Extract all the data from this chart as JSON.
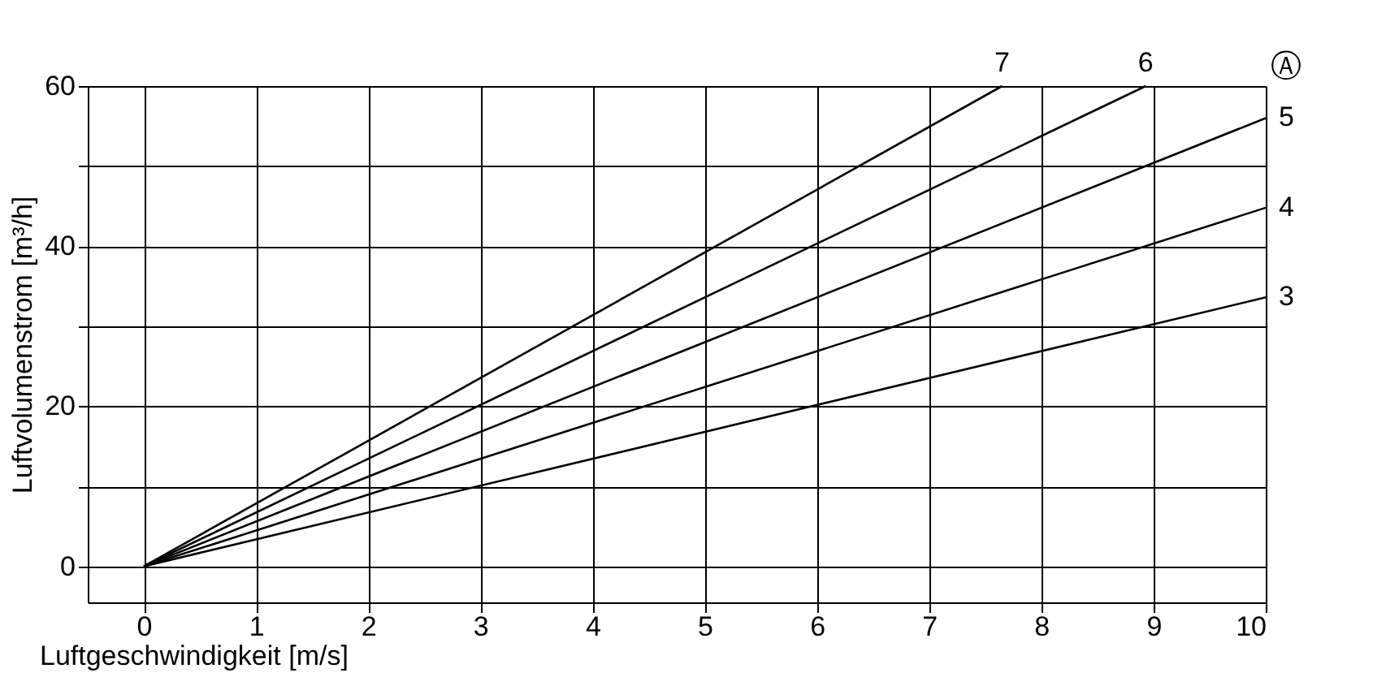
{
  "chart_data": {
    "type": "line",
    "xlabel": "Luftgeschwindigkeit [m/s]",
    "ylabel": "Luftvolumenstrom [m³/h]",
    "xlim": [
      -0.5,
      10
    ],
    "ylim": [
      -4.5,
      60
    ],
    "xticks": [
      0,
      1,
      2,
      3,
      4,
      5,
      6,
      7,
      8,
      9,
      10
    ],
    "yticks": [
      0,
      {
        "value": 10,
        "label": null
      },
      20,
      {
        "value": 30,
        "label": null
      },
      40,
      {
        "value": 50,
        "label": null
      },
      60
    ],
    "grid": true,
    "marker": "none",
    "line_style": "solid",
    "series": [
      {
        "name": "3",
        "color": "#000000",
        "x": [
          0,
          10
        ],
        "values": [
          0,
          33.6
        ]
      },
      {
        "name": "4",
        "color": "#000000",
        "x": [
          0,
          10
        ],
        "values": [
          0,
          44.8
        ]
      },
      {
        "name": "5",
        "color": "#000000",
        "x": [
          0,
          10
        ],
        "values": [
          0,
          56
        ]
      },
      {
        "name": "6",
        "color": "#000000",
        "x": [
          0,
          8.93
        ],
        "values": [
          0,
          60
        ]
      },
      {
        "name": "7",
        "color": "#000000",
        "x": [
          0,
          7.65
        ],
        "values": [
          0,
          60
        ]
      }
    ],
    "annotations": [
      "Ⓐ"
    ]
  }
}
